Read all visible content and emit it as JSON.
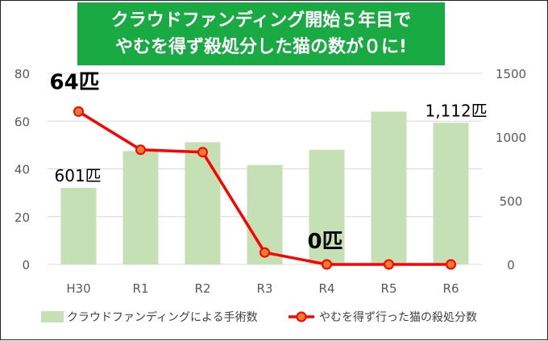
{
  "title": {
    "line1": "クラウドファンディング開始５年目で",
    "line2": "やむを得ず殺処分した猫の数が０に!"
  },
  "chart_data": {
    "type": "bar+line",
    "categories": [
      "H30",
      "R1",
      "R2",
      "R3",
      "R4",
      "R5",
      "R6"
    ],
    "series": [
      {
        "name": "クラウドファンディングによる手術数",
        "type": "bar",
        "axis": "right",
        "values": [
          601,
          890,
          960,
          780,
          900,
          1200,
          1112
        ]
      },
      {
        "name": "やむを得ず行った猫の殺処分数",
        "type": "line",
        "axis": "left",
        "values": [
          64,
          48,
          47,
          5,
          0,
          0,
          0
        ]
      }
    ],
    "y_left": {
      "min": 0,
      "max": 80,
      "ticks": [
        "0",
        "20",
        "40",
        "60",
        "80"
      ]
    },
    "y_right": {
      "min": 0,
      "max": 1500,
      "ticks": [
        "0",
        "500",
        "1000",
        "1500"
      ]
    },
    "grid": true,
    "legend": "bottom",
    "annotations": [
      {
        "text": "64匹",
        "category": "H30",
        "series": "line",
        "bold": true
      },
      {
        "text": "0匹",
        "category": "R4",
        "series": "line",
        "bold": true
      },
      {
        "text": "601匹",
        "category": "H30",
        "series": "bar",
        "bold": false
      },
      {
        "text": "1,112匹",
        "category": "R6",
        "series": "bar",
        "bold": false
      }
    ],
    "colors": {
      "bar": "#c5e0b4",
      "line": "#ff0000",
      "marker_fill": "#ed7d31",
      "grid": "#d9d9d9"
    }
  }
}
